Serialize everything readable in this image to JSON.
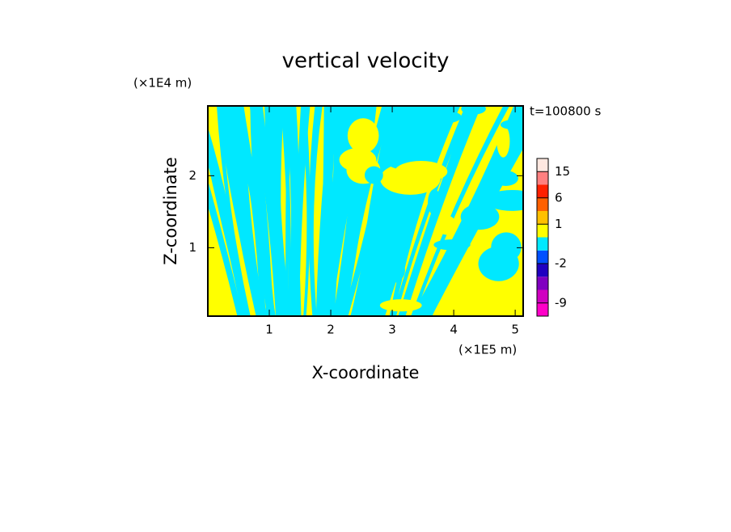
{
  "chart_data": {
    "type": "contour",
    "title": "vertical velocity",
    "x_label": "X-coordinate",
    "y_label": "Z-coordinate",
    "x_unit": "(×1E5 m)",
    "y_unit": "(×1E4 m)",
    "time_label": "t=100800 s",
    "xlim": [
      0,
      5.13
    ],
    "xticks": [
      1,
      2,
      3,
      4,
      5
    ],
    "ylim": [
      0.05,
      2.97
    ],
    "yticks": [
      1,
      2
    ],
    "field_colors": [
      "#ffff00",
      "#00e8ff"
    ],
    "colorbar": {
      "levels": [
        -12,
        -9,
        -6,
        -4,
        -2,
        -1,
        0,
        1,
        3,
        6,
        10,
        15,
        20
      ],
      "colors": [
        "#ff00c8",
        "#d000c0",
        "#8000c0",
        "#2000c0",
        "#0050ff",
        "#00e8ff",
        "#ffff00",
        "#ffc000",
        "#ff6000",
        "#ff2000",
        "#ff8080",
        "#ffe8e0"
      ],
      "ticks": [
        -9,
        -2,
        1,
        6,
        15
      ]
    }
  }
}
